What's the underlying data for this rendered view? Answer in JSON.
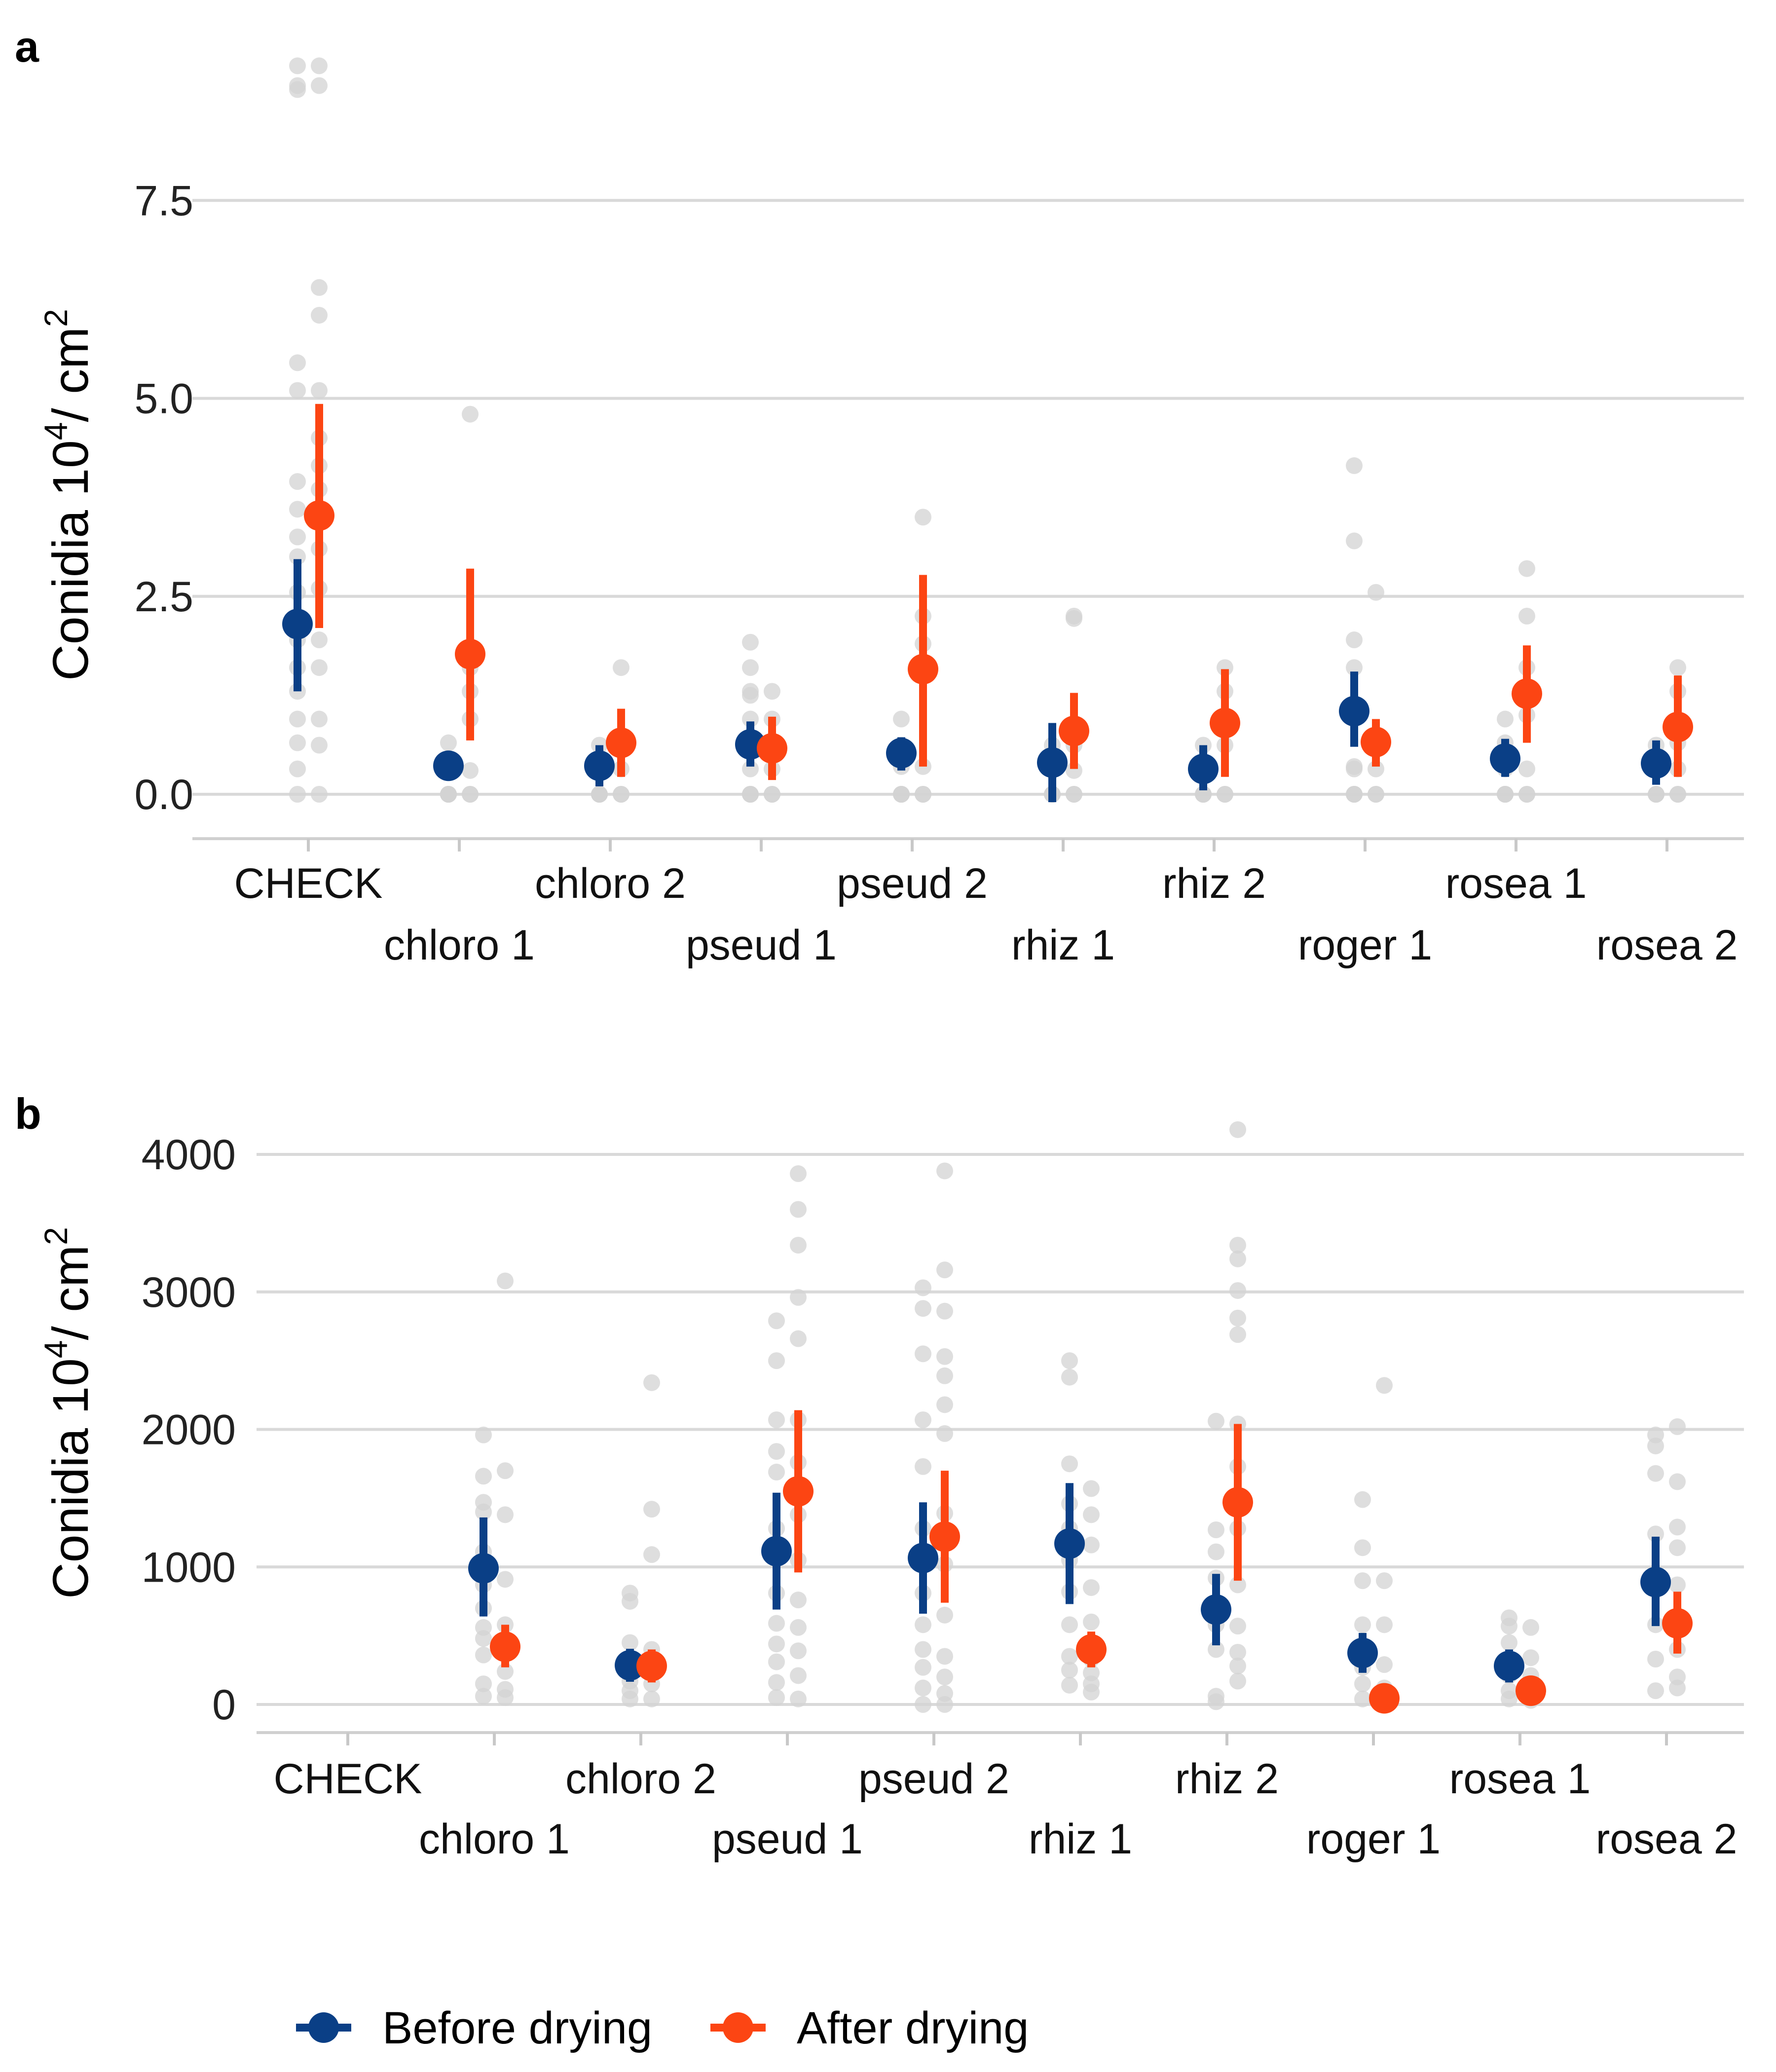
{
  "colors": {
    "before": "#0a3f86",
    "after": "#fc4513",
    "raw": "#d3d3d3",
    "grid": "#d9d9d9"
  },
  "legend": [
    {
      "label": "Before drying",
      "color": "#0a3f86"
    },
    {
      "label": "After drying",
      "color": "#fc4513"
    }
  ],
  "chart_data": [
    {
      "panel": "a",
      "type": "scatter",
      "ylabel": "Conidia 10^4 / cm^2",
      "ylim": [
        -0.55,
        9.5
      ],
      "yticks": [
        "0.0",
        "2.5",
        "5.0",
        "7.5"
      ],
      "ytick_values": [
        0,
        2.5,
        5.0,
        7.5
      ],
      "categories": [
        "CHECK",
        "chloro 1",
        "chloro 2",
        "pseud 1",
        "pseud 2",
        "rhiz 1",
        "rhiz 2",
        "roger 1",
        "rosea 1",
        "rosea 2"
      ],
      "grid": true,
      "series": [
        {
          "name": "Before drying",
          "mean": [
            2.15,
            0.36,
            0.36,
            0.63,
            0.52,
            0.4,
            0.32,
            1.05,
            0.45,
            0.39
          ],
          "lower": [
            1.3,
            0.18,
            0.1,
            0.35,
            0.3,
            -0.1,
            0.05,
            0.6,
            0.22,
            0.12
          ],
          "upper": [
            2.97,
            0.52,
            0.62,
            0.92,
            0.72,
            0.9,
            0.62,
            1.55,
            0.7,
            0.68
          ]
        },
        {
          "name": "After drying",
          "mean": [
            3.52,
            1.77,
            0.65,
            0.58,
            1.58,
            0.8,
            0.9,
            0.66,
            1.27,
            0.85
          ],
          "lower": [
            2.1,
            0.68,
            0.22,
            0.18,
            0.35,
            0.32,
            0.22,
            0.35,
            0.65,
            0.22
          ],
          "upper": [
            4.93,
            2.85,
            1.08,
            0.98,
            2.77,
            1.28,
            1.58,
            0.95,
            1.88,
            1.5
          ]
        }
      ],
      "raw_points": {
        "before": [
          [
            9.2,
            8.95,
            8.9,
            5.45,
            5.1,
            3.95,
            3.6,
            3.25,
            3.0,
            2.55,
            2.2,
            1.95,
            1.6,
            1.3,
            0.95,
            0.65,
            0.32,
            0.0
          ],
          [
            0.65,
            0.32,
            0.0,
            0.0,
            0.0,
            0.0
          ],
          [
            0.62,
            0.32,
            0.0,
            0.0,
            0.0,
            0.0
          ],
          [
            1.92,
            1.6,
            1.3,
            1.25,
            0.95,
            0.62,
            0.32,
            0.0,
            0.0,
            0.0
          ],
          [
            0.95,
            0.62,
            0.35,
            0.0,
            0.0,
            0.0
          ],
          [
            0.62,
            0.32,
            0.0,
            0.0,
            0.0
          ],
          [
            0.62,
            0.32,
            0.0,
            0.0,
            0.0
          ],
          [
            4.15,
            3.2,
            1.95,
            1.6,
            0.95,
            0.35,
            0.32,
            0.0,
            0.0,
            0.0
          ],
          [
            0.95,
            0.65,
            0.32,
            0.0,
            0.0,
            0.0
          ],
          [
            0.62,
            0.32,
            0.0,
            0.0,
            0.0
          ]
        ],
        "after": [
          [
            9.2,
            8.95,
            6.4,
            6.05,
            5.1,
            4.5,
            4.15,
            3.85,
            3.5,
            3.1,
            2.6,
            1.95,
            1.6,
            0.95,
            0.62,
            0.0
          ],
          [
            4.8,
            1.6,
            1.3,
            0.95,
            0.3,
            0.0,
            0.0
          ],
          [
            1.6,
            0.62,
            0.32,
            0.0,
            0.0
          ],
          [
            1.3,
            0.95,
            0.62,
            0.32,
            0.0,
            0.0
          ],
          [
            3.5,
            2.25,
            1.9,
            0.35,
            0.0,
            0.0
          ],
          [
            2.25,
            2.22,
            0.62,
            0.3,
            0.0,
            0.0
          ],
          [
            1.6,
            1.3,
            0.62,
            0.0,
            0.0
          ],
          [
            2.55,
            0.65,
            0.32,
            0.0,
            0.0
          ],
          [
            2.85,
            2.25,
            1.6,
            1.0,
            0.32,
            0.0,
            0.0
          ],
          [
            1.6,
            1.3,
            0.65,
            0.32,
            0.0,
            0.0
          ]
        ]
      }
    },
    {
      "panel": "b",
      "type": "scatter",
      "ylabel": "Conidia 10^4 / cm^2",
      "ylim": [
        -200,
        4300
      ],
      "yticks": [
        "0",
        "1000",
        "2000",
        "3000",
        "4000"
      ],
      "ytick_values": [
        0,
        1000,
        2000,
        3000,
        4000
      ],
      "categories": [
        "CHECK",
        "chloro 1",
        "chloro 2",
        "pseud 1",
        "pseud 2",
        "rhiz 1",
        "rhiz 2",
        "roger 1",
        "rosea 1",
        "rosea 2"
      ],
      "grid": true,
      "series": [
        {
          "name": "Before drying",
          "mean": [
            null,
            990,
            285,
            1115,
            1065,
            1170,
            690,
            375,
            280,
            890
          ],
          "lower": [
            null,
            640,
            165,
            690,
            660,
            730,
            430,
            230,
            160,
            570
          ],
          "upper": [
            null,
            1360,
            405,
            1540,
            1470,
            1610,
            950,
            520,
            400,
            1220
          ]
        },
        {
          "name": "After drying",
          "mean": [
            null,
            420,
            280,
            1550,
            1220,
            400,
            1470,
            45,
            100,
            590
          ],
          "lower": [
            null,
            270,
            160,
            960,
            740,
            270,
            900,
            25,
            50,
            370
          ],
          "upper": [
            null,
            580,
            400,
            2140,
            1700,
            530,
            2040,
            65,
            150,
            820
          ]
        }
      ],
      "raw_points": {
        "before": [
          [],
          [
            1960,
            1660,
            1470,
            1400,
            1110,
            870,
            700,
            560,
            480,
            360,
            150,
            60
          ],
          [
            810,
            750,
            450,
            310,
            220,
            170,
            100,
            40
          ],
          [
            2790,
            2500,
            2070,
            1840,
            1690,
            1280,
            1070,
            810,
            590,
            440,
            310,
            160,
            50
          ],
          [
            3030,
            2880,
            2550,
            2070,
            1730,
            1280,
            1070,
            810,
            580,
            400,
            270,
            120,
            0
          ],
          [
            2500,
            2380,
            1750,
            1460,
            1280,
            1050,
            820,
            580,
            350,
            250,
            140
          ],
          [
            2060,
            1270,
            1110,
            920,
            730,
            580,
            400,
            60,
            20
          ],
          [
            1490,
            1140,
            900,
            580,
            270,
            150,
            40
          ],
          [
            630,
            570,
            450,
            320,
            210,
            100,
            40
          ],
          [
            1960,
            1880,
            1680,
            1240,
            910,
            580,
            330,
            100
          ]
        ],
        "after": [
          [],
          [
            3080,
            1700,
            1380,
            910,
            580,
            410,
            240,
            110,
            50
          ],
          [
            2340,
            1420,
            1090,
            400,
            290,
            150,
            40
          ],
          [
            3860,
            3600,
            3340,
            2960,
            2660,
            2070,
            1760,
            1380,
            1050,
            760,
            560,
            390,
            210,
            40
          ],
          [
            3880,
            3160,
            2860,
            2530,
            2390,
            2180,
            1970,
            1390,
            1020,
            650,
            350,
            200,
            80,
            0
          ],
          [
            1570,
            1380,
            1160,
            850,
            600,
            330,
            230,
            150,
            90
          ],
          [
            4180,
            3340,
            3240,
            3010,
            2810,
            2690,
            2040,
            1730,
            1280,
            870,
            570,
            380,
            280,
            170
          ],
          [
            2320,
            900,
            580,
            290,
            120,
            30
          ],
          [
            560,
            340,
            210,
            100,
            30
          ],
          [
            2020,
            1620,
            1290,
            1140,
            870,
            400,
            200,
            120
          ]
        ]
      }
    }
  ]
}
